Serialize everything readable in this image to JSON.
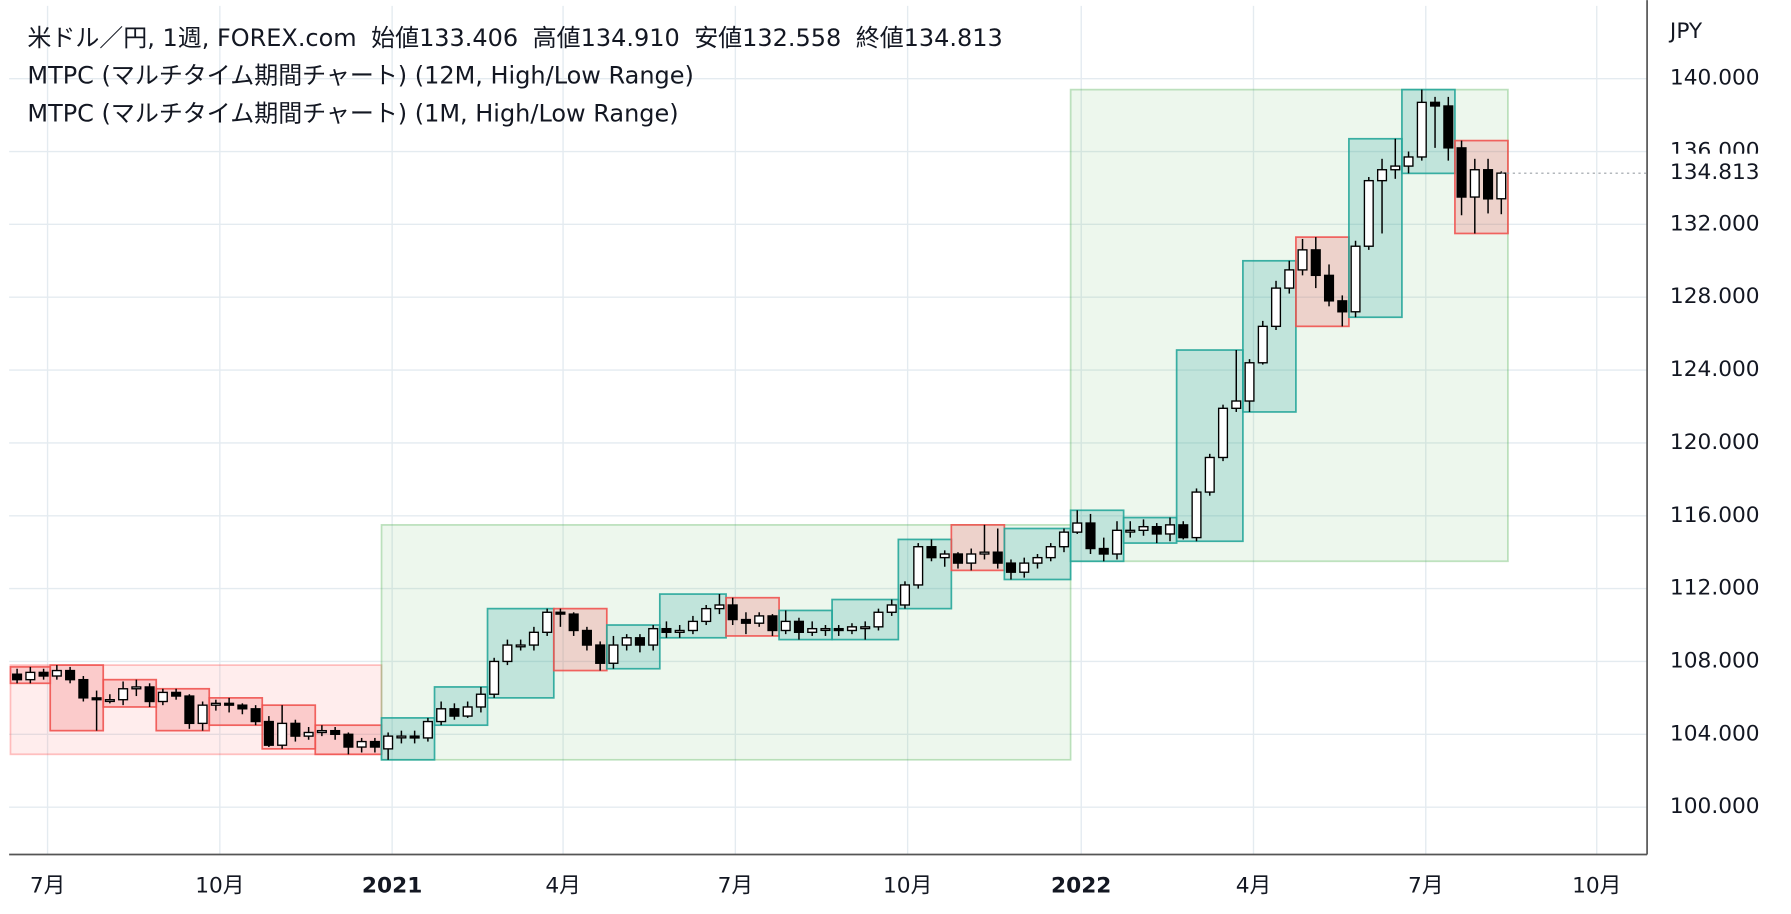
{
  "chart_data": {
    "type": "candlestick",
    "header": {
      "symbol": "米ドル／円, 1週, FOREX.com",
      "open_label": "始値",
      "open": "133.406",
      "high_label": "高値",
      "high": "134.910",
      "low_label": "安値",
      "low": "132.558",
      "close_label": "終値",
      "close": "134.813"
    },
    "indicators": [
      "MTPC (マルチタイム期間チャート) (12M, High/Low Range)",
      "MTPC (マルチタイム期間チャート) (1M, High/Low Range)"
    ],
    "y_unit": "JPY",
    "ohlc": [
      [
        107.3,
        107.6,
        106.8,
        107.0
      ],
      [
        107.0,
        107.7,
        106.8,
        107.4
      ],
      [
        107.4,
        107.6,
        107.0,
        107.2
      ],
      [
        107.2,
        107.8,
        107.0,
        107.5
      ],
      [
        107.5,
        107.7,
        106.8,
        107.0
      ],
      [
        107.0,
        107.2,
        105.8,
        106.0
      ],
      [
        106.0,
        106.4,
        104.2,
        105.9
      ],
      [
        105.9,
        106.2,
        105.7,
        105.9
      ],
      [
        105.9,
        106.9,
        105.6,
        106.5
      ],
      [
        106.5,
        107.0,
        106.1,
        106.6
      ],
      [
        106.6,
        106.8,
        105.5,
        105.8
      ],
      [
        105.8,
        106.5,
        105.6,
        106.3
      ],
      [
        106.3,
        106.5,
        105.9,
        106.1
      ],
      [
        106.1,
        106.2,
        104.3,
        104.6
      ],
      [
        104.6,
        105.8,
        104.2,
        105.6
      ],
      [
        105.6,
        105.9,
        105.3,
        105.7
      ],
      [
        105.7,
        106.0,
        105.2,
        105.6
      ],
      [
        105.6,
        105.7,
        105.1,
        105.4
      ],
      [
        105.4,
        105.6,
        104.5,
        104.7
      ],
      [
        104.7,
        105.0,
        103.3,
        103.4
      ],
      [
        103.4,
        105.6,
        103.2,
        104.6
      ],
      [
        104.6,
        104.8,
        103.6,
        103.9
      ],
      [
        103.9,
        104.4,
        103.7,
        104.1
      ],
      [
        104.1,
        104.5,
        103.9,
        104.2
      ],
      [
        104.2,
        104.4,
        103.7,
        104.0
      ],
      [
        104.0,
        104.1,
        102.9,
        103.3
      ],
      [
        103.3,
        103.8,
        103.0,
        103.6
      ],
      [
        103.6,
        103.8,
        103.0,
        103.3
      ],
      [
        103.2,
        104.1,
        102.6,
        103.9
      ],
      [
        103.9,
        104.2,
        103.5,
        103.9
      ],
      [
        103.9,
        104.2,
        103.5,
        103.8
      ],
      [
        103.8,
        104.9,
        103.6,
        104.7
      ],
      [
        104.7,
        105.8,
        104.5,
        105.4
      ],
      [
        105.4,
        105.7,
        104.8,
        105.0
      ],
      [
        105.0,
        105.8,
        104.9,
        105.5
      ],
      [
        105.5,
        106.6,
        105.2,
        106.2
      ],
      [
        106.2,
        108.2,
        106.0,
        108.0
      ],
      [
        108.0,
        109.2,
        107.8,
        108.9
      ],
      [
        108.9,
        109.2,
        108.6,
        108.9
      ],
      [
        108.9,
        109.9,
        108.6,
        109.6
      ],
      [
        109.6,
        110.9,
        109.4,
        110.7
      ],
      [
        110.7,
        110.9,
        109.9,
        110.6
      ],
      [
        110.6,
        110.7,
        109.4,
        109.7
      ],
      [
        109.7,
        109.9,
        108.6,
        108.9
      ],
      [
        108.9,
        109.1,
        107.5,
        107.9
      ],
      [
        107.9,
        109.4,
        107.6,
        108.9
      ],
      [
        108.9,
        109.5,
        108.6,
        109.3
      ],
      [
        109.3,
        109.5,
        108.5,
        108.9
      ],
      [
        108.9,
        110.0,
        108.6,
        109.8
      ],
      [
        109.8,
        110.2,
        109.3,
        109.6
      ],
      [
        109.6,
        110.0,
        109.3,
        109.7
      ],
      [
        109.7,
        110.5,
        109.5,
        110.2
      ],
      [
        110.2,
        111.1,
        110.0,
        110.9
      ],
      [
        110.9,
        111.7,
        110.6,
        111.1
      ],
      [
        111.1,
        111.5,
        110.0,
        110.3
      ],
      [
        110.3,
        110.7,
        109.5,
        110.1
      ],
      [
        110.1,
        110.7,
        109.9,
        110.5
      ],
      [
        110.5,
        110.6,
        109.4,
        109.7
      ],
      [
        109.7,
        110.8,
        109.5,
        110.2
      ],
      [
        110.2,
        110.4,
        109.2,
        109.6
      ],
      [
        109.6,
        110.2,
        109.4,
        109.8
      ],
      [
        109.8,
        110.0,
        109.4,
        109.8
      ],
      [
        109.8,
        110.0,
        109.4,
        109.7
      ],
      [
        109.7,
        110.1,
        109.5,
        109.9
      ],
      [
        109.9,
        110.2,
        109.2,
        109.9
      ],
      [
        109.9,
        110.9,
        109.7,
        110.7
      ],
      [
        110.7,
        111.4,
        110.5,
        111.1
      ],
      [
        111.1,
        112.4,
        110.9,
        112.2
      ],
      [
        112.2,
        114.5,
        112.0,
        114.3
      ],
      [
        114.3,
        114.7,
        113.5,
        113.7
      ],
      [
        113.7,
        114.1,
        113.2,
        113.9
      ],
      [
        113.9,
        114.0,
        113.1,
        113.4
      ],
      [
        113.4,
        114.2,
        113.0,
        113.9
      ],
      [
        113.9,
        115.5,
        113.6,
        114.0
      ],
      [
        114.0,
        115.3,
        113.1,
        113.4
      ],
      [
        113.4,
        113.6,
        112.5,
        112.9
      ],
      [
        112.9,
        113.7,
        112.6,
        113.4
      ],
      [
        113.4,
        113.9,
        113.1,
        113.7
      ],
      [
        113.7,
        114.5,
        113.5,
        114.3
      ],
      [
        114.3,
        115.3,
        114.0,
        115.1
      ],
      [
        115.1,
        116.3,
        115.0,
        115.6
      ],
      [
        115.6,
        116.1,
        113.9,
        114.2
      ],
      [
        114.2,
        114.8,
        113.5,
        113.9
      ],
      [
        113.9,
        115.7,
        113.6,
        115.2
      ],
      [
        115.2,
        115.7,
        114.8,
        115.2
      ],
      [
        115.2,
        115.8,
        114.9,
        115.4
      ],
      [
        115.4,
        115.6,
        114.5,
        115.0
      ],
      [
        115.0,
        115.9,
        114.6,
        115.5
      ],
      [
        115.5,
        115.7,
        114.7,
        114.8
      ],
      [
        114.8,
        117.5,
        114.6,
        117.3
      ],
      [
        117.3,
        119.4,
        117.1,
        119.2
      ],
      [
        119.2,
        122.1,
        119.0,
        121.9
      ],
      [
        121.9,
        125.1,
        121.7,
        122.3
      ],
      [
        122.3,
        124.6,
        121.7,
        124.4
      ],
      [
        124.4,
        126.7,
        124.3,
        126.4
      ],
      [
        126.4,
        128.9,
        126.2,
        128.5
      ],
      [
        128.5,
        130.0,
        128.2,
        129.5
      ],
      [
        129.5,
        131.2,
        129.2,
        130.6
      ],
      [
        130.6,
        131.3,
        128.5,
        129.2
      ],
      [
        129.2,
        129.8,
        127.5,
        127.8
      ],
      [
        127.8,
        128.1,
        126.4,
        127.2
      ],
      [
        127.2,
        131.1,
        126.9,
        130.8
      ],
      [
        130.8,
        134.6,
        130.6,
        134.4
      ],
      [
        134.4,
        135.6,
        131.5,
        135.0
      ],
      [
        135.0,
        136.7,
        134.5,
        135.2
      ],
      [
        135.2,
        136.0,
        134.8,
        135.7
      ],
      [
        135.7,
        139.4,
        135.5,
        138.7
      ],
      [
        138.7,
        139.0,
        136.2,
        138.5
      ],
      [
        138.5,
        139.0,
        135.5,
        136.2
      ],
      [
        136.2,
        136.6,
        132.5,
        133.5
      ],
      [
        133.5,
        135.6,
        131.5,
        135.0
      ],
      [
        135.0,
        135.6,
        132.6,
        133.4
      ],
      [
        133.406,
        134.91,
        132.558,
        134.813
      ]
    ],
    "months": [
      [
        0,
        2
      ],
      [
        3,
        6
      ],
      [
        7,
        10
      ],
      [
        11,
        14
      ],
      [
        15,
        18
      ],
      [
        19,
        22
      ],
      [
        23,
        27
      ],
      [
        28,
        31
      ],
      [
        32,
        35
      ],
      [
        36,
        40
      ],
      [
        41,
        44
      ],
      [
        45,
        48
      ],
      [
        49,
        53
      ],
      [
        54,
        57
      ],
      [
        58,
        61
      ],
      [
        62,
        66
      ],
      [
        67,
        70
      ],
      [
        71,
        74
      ],
      [
        75,
        79
      ],
      [
        80,
        83
      ],
      [
        84,
        87
      ],
      [
        88,
        92
      ],
      [
        93,
        96
      ],
      [
        97,
        100
      ],
      [
        101,
        104
      ],
      [
        105,
        108
      ],
      [
        109,
        112
      ]
    ],
    "years": [
      [
        0,
        27
      ],
      [
        28,
        79
      ],
      [
        80,
        112
      ]
    ],
    "xlim": [
      -0.6,
      123.0
    ],
    "ylim": [
      97.4,
      144.0
    ],
    "xticks": [
      {
        "value": 2.3,
        "label": "7月"
      },
      {
        "value": 15.3,
        "label": "10月"
      },
      {
        "value": 28.3,
        "label": "2021"
      },
      {
        "value": 41.2,
        "label": "4月"
      },
      {
        "value": 54.2,
        "label": "7月"
      },
      {
        "value": 67.2,
        "label": "10月"
      },
      {
        "value": 80.3,
        "label": "2022"
      },
      {
        "value": 93.3,
        "label": "4月"
      },
      {
        "value": 106.3,
        "label": "7月"
      },
      {
        "value": 119.2,
        "label": "10月"
      }
    ],
    "yticks": [
      {
        "value": 100,
        "label": "100.000"
      },
      {
        "value": 104,
        "label": "104.000"
      },
      {
        "value": 108,
        "label": "108.000"
      },
      {
        "value": 112,
        "label": "112.000"
      },
      {
        "value": 116,
        "label": "116.000"
      },
      {
        "value": 120,
        "label": "120.000"
      },
      {
        "value": 124,
        "label": "124.000"
      },
      {
        "value": 128,
        "label": "128.000"
      },
      {
        "value": 132,
        "label": "132.000"
      },
      {
        "value": 136,
        "label": "136.000"
      },
      {
        "value": 140,
        "label": "140.000"
      }
    ],
    "grid": true,
    "colors": {
      "up_fill": "#ffffff",
      "down_fill": "#000000",
      "wick": "#000000",
      "month_up": "#26a69a",
      "month_down": "#ef5350",
      "year_up": "#4caf50",
      "year_down": "#ff5252"
    }
  }
}
